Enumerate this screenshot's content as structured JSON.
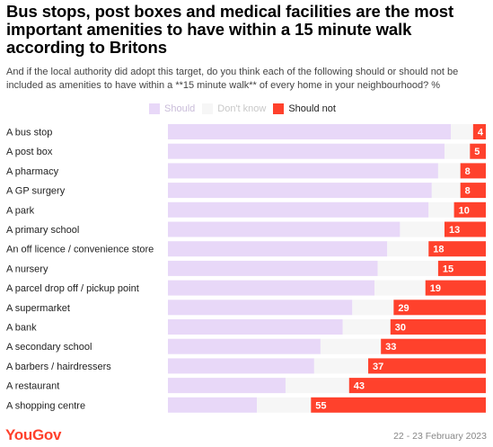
{
  "header": {
    "title": "Bus stops, post boxes and medical facilities are the most important amenities to have within a 15 minute walk according to Britons",
    "subtitle": "And if the local authority did adopt this target, do you think each of the following should or should not be included as amenities to have within a **15 minute walk** of every home in your neighbourhood? %"
  },
  "legend": {
    "items": [
      {
        "label": "Should",
        "color": "#e8d8f8",
        "text_color": "#c9bcd9"
      },
      {
        "label": "Don't know",
        "color": "#f6f6f6",
        "text_color": "#c8c8c8"
      },
      {
        "label": "Should not",
        "color": "#ff412c",
        "text_color": "#222222"
      }
    ]
  },
  "chart_data": {
    "type": "bar",
    "orientation": "horizontal",
    "stacked": true,
    "xlim": [
      0,
      100
    ],
    "categories": [
      "A bus stop",
      "A post box",
      "A pharmacy",
      "A GP surgery",
      "A park",
      "A primary school",
      "An off licence / convenience store",
      "A nursery",
      "A parcel drop off / pickup point",
      "A supermarket",
      "A bank",
      "A secondary school",
      "A barbers / hairdressers",
      "A restaurant",
      "A shopping centre"
    ],
    "series": [
      {
        "name": "Should",
        "color": "#e8d8f8",
        "values": [
          89,
          87,
          85,
          83,
          82,
          73,
          69,
          66,
          65,
          58,
          55,
          48,
          46,
          37,
          28
        ]
      },
      {
        "name": "Don't know",
        "color": "#f6f6f6",
        "values": [
          7,
          8,
          7,
          9,
          8,
          14,
          13,
          19,
          16,
          13,
          15,
          19,
          17,
          20,
          17
        ]
      },
      {
        "name": "Should not",
        "color": "#ff412c",
        "values": [
          4,
          5,
          8,
          8,
          10,
          13,
          18,
          15,
          19,
          29,
          30,
          33,
          37,
          43,
          55
        ]
      }
    ],
    "labelled_series": "Should not"
  },
  "footer": {
    "logo": "YouGov",
    "date": "22 - 23 February 2023"
  }
}
